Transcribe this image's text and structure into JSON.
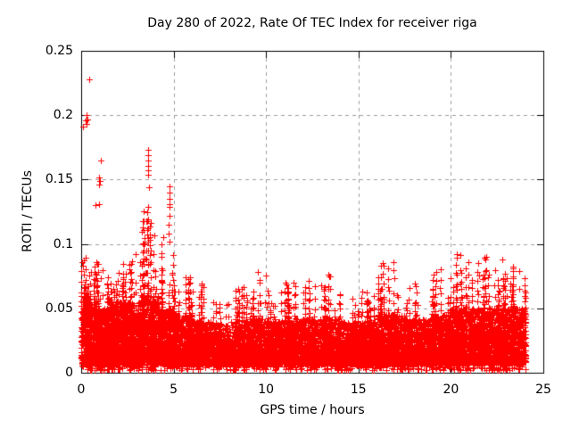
{
  "chart_data": {
    "type": "scatter",
    "title": "Day 280 of 2022, Rate Of TEC Index for receiver riga",
    "xlabel": "GPS time / hours",
    "ylabel": "ROTI / TECUs",
    "xlim": [
      0,
      25
    ],
    "ylim": [
      0,
      0.25
    ],
    "xticks": [
      0,
      5,
      10,
      15,
      20,
      25
    ],
    "yticks": [
      0,
      0.05,
      0.1,
      0.15,
      0.2,
      0.25
    ],
    "xtick_labels": [
      "0",
      "5",
      "10",
      "15",
      "20",
      "25"
    ],
    "ytick_labels": [
      "0",
      "0.05",
      "0.1",
      "0.15",
      "0.2",
      "0.25"
    ],
    "grid": {
      "visible": true,
      "style": "dashed",
      "color": "#a0a0a0",
      "dash": [
        4,
        4
      ]
    },
    "border_color": "#000000",
    "background": "#ffffff",
    "marker": {
      "shape": "plus",
      "color": "#ff0000",
      "size": 7
    },
    "legend": "none",
    "x_data_range": [
      0,
      24.05
    ],
    "seed": 20220280,
    "outliers": [
      [
        0.42,
        0.228
      ],
      [
        0.1,
        0.191
      ],
      [
        0.28,
        0.2
      ],
      [
        0.33,
        0.197
      ],
      [
        0.3,
        0.193
      ],
      [
        0.22,
        0.196
      ],
      [
        1.06,
        0.165
      ],
      [
        0.97,
        0.152
      ],
      [
        0.99,
        0.149
      ],
      [
        0.95,
        0.146
      ],
      [
        0.75,
        0.13
      ],
      [
        0.97,
        0.131
      ],
      [
        3.62,
        0.173
      ],
      [
        3.6,
        0.169
      ],
      [
        3.63,
        0.165
      ],
      [
        3.61,
        0.161
      ],
      [
        3.62,
        0.157
      ],
      [
        3.6,
        0.154
      ],
      [
        3.67,
        0.144
      ],
      [
        3.6,
        0.129
      ],
      [
        3.58,
        0.125
      ],
      [
        3.55,
        0.118
      ],
      [
        3.57,
        0.111
      ],
      [
        3.7,
        0.105
      ],
      [
        3.72,
        0.099
      ],
      [
        4.78,
        0.145
      ],
      [
        4.77,
        0.14
      ],
      [
        4.76,
        0.135
      ],
      [
        4.79,
        0.131
      ],
      [
        4.77,
        0.129
      ],
      [
        4.8,
        0.122
      ],
      [
        4.75,
        0.115
      ],
      [
        4.74,
        0.108
      ],
      [
        4.76,
        0.102
      ],
      [
        4.45,
        0.105
      ],
      [
        2.95,
        0.092
      ],
      [
        9.55,
        0.078
      ],
      [
        13.4,
        0.075
      ],
      [
        16.9,
        0.086
      ],
      [
        20.3,
        0.092
      ],
      [
        21.9,
        0.09
      ],
      [
        22.8,
        0.088
      ]
    ],
    "bands": [
      {
        "x0": 0.0,
        "x1": 0.5,
        "n": 300,
        "lo": 0.007,
        "hi": 0.062,
        "max": 0.09,
        "cols": 8
      },
      {
        "x0": 0.5,
        "x1": 1.0,
        "n": 260,
        "lo": 0.007,
        "hi": 0.055,
        "max": 0.086,
        "cols": 6
      },
      {
        "x0": 1.0,
        "x1": 1.5,
        "n": 280,
        "lo": 0.007,
        "hi": 0.05,
        "max": 0.08,
        "cols": 6
      },
      {
        "x0": 1.5,
        "x1": 2.5,
        "n": 520,
        "lo": 0.007,
        "hi": 0.055,
        "max": 0.085,
        "cols": 10
      },
      {
        "x0": 2.5,
        "x1": 3.3,
        "n": 430,
        "lo": 0.007,
        "hi": 0.055,
        "max": 0.088,
        "cols": 9
      },
      {
        "x0": 3.3,
        "x1": 4.2,
        "n": 480,
        "lo": 0.008,
        "hi": 0.06,
        "max": 0.13,
        "cols": 12
      },
      {
        "x0": 4.2,
        "x1": 5.0,
        "n": 400,
        "lo": 0.007,
        "hi": 0.05,
        "max": 0.105,
        "cols": 8
      },
      {
        "x0": 5.0,
        "x1": 6.0,
        "n": 420,
        "lo": 0.007,
        "hi": 0.045,
        "max": 0.075,
        "cols": 8
      },
      {
        "x0": 6.0,
        "x1": 7.0,
        "n": 420,
        "lo": 0.007,
        "hi": 0.04,
        "max": 0.072,
        "cols": 7
      },
      {
        "x0": 7.0,
        "x1": 8.0,
        "n": 420,
        "lo": 0.007,
        "hi": 0.038,
        "max": 0.06,
        "cols": 6
      },
      {
        "x0": 8.0,
        "x1": 9.0,
        "n": 420,
        "lo": 0.007,
        "hi": 0.04,
        "max": 0.068,
        "cols": 7
      },
      {
        "x0": 9.0,
        "x1": 10.0,
        "n": 430,
        "lo": 0.007,
        "hi": 0.042,
        "max": 0.078,
        "cols": 8
      },
      {
        "x0": 10.0,
        "x1": 11.0,
        "n": 430,
        "lo": 0.007,
        "hi": 0.04,
        "max": 0.068,
        "cols": 7
      },
      {
        "x0": 11.0,
        "x1": 12.0,
        "n": 430,
        "lo": 0.007,
        "hi": 0.042,
        "max": 0.075,
        "cols": 8
      },
      {
        "x0": 12.0,
        "x1": 13.0,
        "n": 430,
        "lo": 0.007,
        "hi": 0.042,
        "max": 0.072,
        "cols": 7
      },
      {
        "x0": 13.0,
        "x1": 14.0,
        "n": 430,
        "lo": 0.007,
        "hi": 0.043,
        "max": 0.075,
        "cols": 8
      },
      {
        "x0": 14.0,
        "x1": 15.0,
        "n": 430,
        "lo": 0.007,
        "hi": 0.04,
        "max": 0.063,
        "cols": 6
      },
      {
        "x0": 15.0,
        "x1": 16.0,
        "n": 430,
        "lo": 0.007,
        "hi": 0.04,
        "max": 0.065,
        "cols": 7
      },
      {
        "x0": 16.0,
        "x1": 17.5,
        "n": 650,
        "lo": 0.007,
        "hi": 0.045,
        "max": 0.086,
        "cols": 12
      },
      {
        "x0": 17.5,
        "x1": 19.0,
        "n": 650,
        "lo": 0.007,
        "hi": 0.042,
        "max": 0.07,
        "cols": 9
      },
      {
        "x0": 19.0,
        "x1": 20.0,
        "n": 430,
        "lo": 0.007,
        "hi": 0.045,
        "max": 0.08,
        "cols": 8
      },
      {
        "x0": 20.0,
        "x1": 21.0,
        "n": 450,
        "lo": 0.008,
        "hi": 0.05,
        "max": 0.092,
        "cols": 10
      },
      {
        "x0": 21.0,
        "x1": 22.5,
        "n": 680,
        "lo": 0.008,
        "hi": 0.05,
        "max": 0.09,
        "cols": 12
      },
      {
        "x0": 22.5,
        "x1": 23.3,
        "n": 360,
        "lo": 0.008,
        "hi": 0.05,
        "max": 0.088,
        "cols": 8
      },
      {
        "x0": 23.3,
        "x1": 24.05,
        "n": 340,
        "lo": 0.008,
        "hi": 0.05,
        "max": 0.082,
        "cols": 8
      }
    ]
  }
}
